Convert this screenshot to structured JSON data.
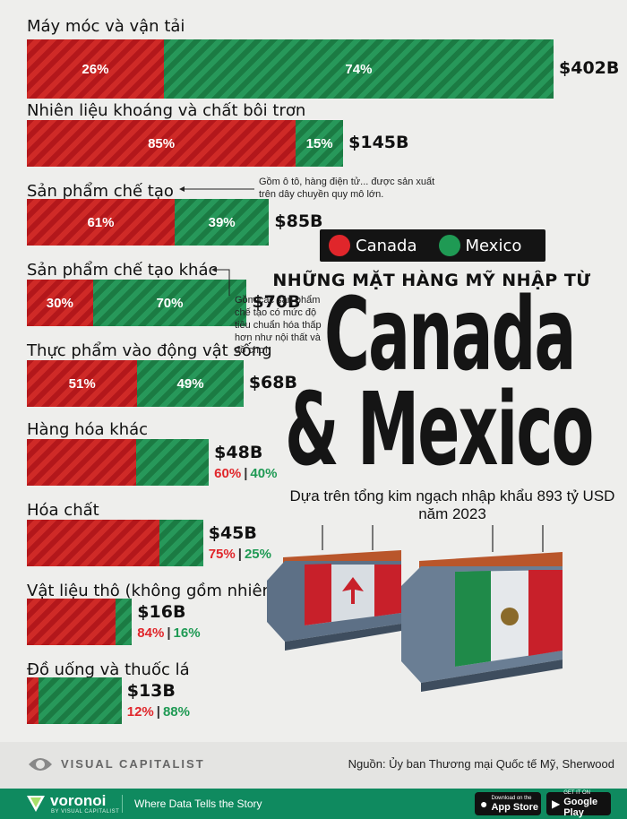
{
  "chart_data": {
    "type": "bar",
    "orientation": "horizontal-stacked",
    "title": "NHỮNG MẶT HÀNG MỸ NHẬP TỪ",
    "title_big_line1": "Canada",
    "title_big_line2": "& Mexico",
    "description": "Dựa trên tổng kim ngạch nhập khẩu 893 tỷ USD năm 2023",
    "legend": [
      {
        "name": "Canada",
        "color": "#e0262b"
      },
      {
        "name": "Mexico",
        "color": "#1f9a54"
      }
    ],
    "series": [
      {
        "name": "Canada",
        "values": [
          26,
          85,
          61,
          30,
          51,
          60,
          75,
          84,
          12
        ]
      },
      {
        "name": "Mexico",
        "values": [
          74,
          15,
          39,
          70,
          49,
          40,
          25,
          16,
          88
        ]
      }
    ],
    "unit": "%",
    "categories": [
      {
        "label": "Máy móc và vận tải",
        "total": 402,
        "total_label": "$402B",
        "ca_label": "26%",
        "mx_label": "74%",
        "inside": true
      },
      {
        "label": "Nhiên liệu khoáng và chất bôi trơn",
        "total": 145,
        "total_label": "$145B",
        "ca_label": "85%",
        "mx_label": "15%",
        "inside": true
      },
      {
        "label": "Sản phẩm chế tạo",
        "total": 85,
        "total_label": "$85B",
        "ca_label": "61%",
        "mx_label": "39%",
        "inside": true
      },
      {
        "label": "Sản phẩm chế tạo khác",
        "total": 70,
        "total_label": "$70B",
        "ca_label": "30%",
        "mx_label": "70%",
        "inside": true
      },
      {
        "label": "Thực phẩm vào động vật sống",
        "total": 68,
        "total_label": "$68B",
        "ca_label": "51%",
        "mx_label": "49%",
        "inside": true
      },
      {
        "label": "Hàng hóa khác",
        "total": 48,
        "total_label": "$48B",
        "ca_label": "60%",
        "mx_label": "40%",
        "inside": false
      },
      {
        "label": "Hóa chất",
        "total": 45,
        "total_label": "$45B",
        "ca_label": "75%",
        "mx_label": "25%",
        "inside": false
      },
      {
        "label": "Vật liệu thô (không gồm nhiên liệu)",
        "total": 16,
        "total_label": "$16B",
        "ca_label": "84%",
        "mx_label": "16%",
        "inside": false
      },
      {
        "label": "Đồ uống và thuốc lá",
        "total": 13,
        "total_label": "$13B",
        "ca_label": "12%",
        "mx_label": "88%",
        "inside": false
      }
    ],
    "annotations": [
      "Gồm ô tô, hàng điện tử... được sản xuất trên dây chuyền quy mô lớn.",
      "Gồm các sản phẩm chế tạo có mức độ tiêu chuẩn hóa thấp hơn như nội thất và đồ chơi"
    ]
  },
  "footer": {
    "brand": "VISUAL CAPITALIST",
    "source": "Nguồn: Ủy ban Thương mại Quốc tế Mỹ, Sherwood",
    "voronoi": "voronoi",
    "voronoi_sub": "BY VISUAL CAPITALIST",
    "tagline": "Where Data Tells the Story",
    "appstore_small": "Download on the",
    "appstore_big": "App Store",
    "googleplay_small": "GET IT ON",
    "googleplay_big": "Google Play"
  },
  "colors": {
    "canada": "#e0262b",
    "mexico": "#1f9a54",
    "footer": "#0f8a5f"
  }
}
